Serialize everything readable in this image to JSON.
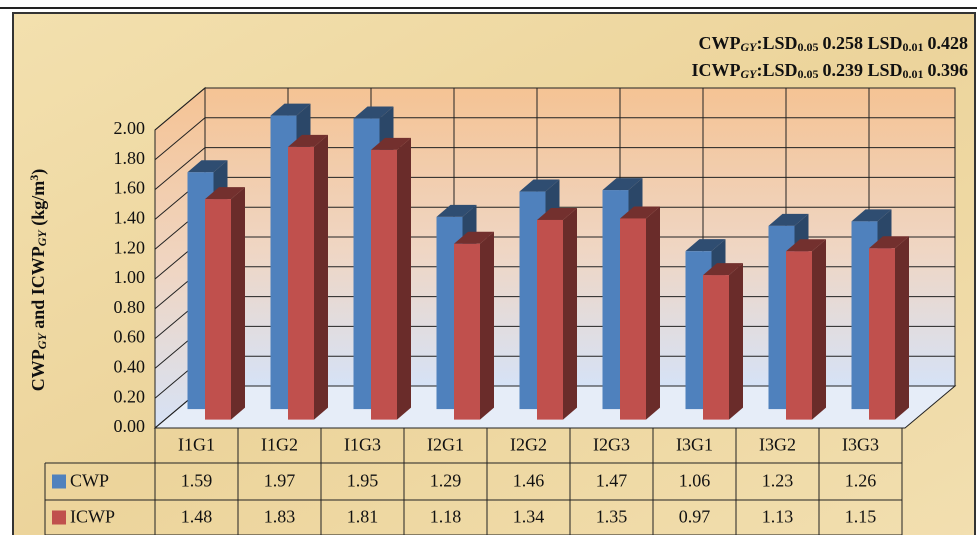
{
  "chart_data": {
    "type": "bar3d",
    "categories": [
      "I1G1",
      "I1G2",
      "I1G3",
      "I2G1",
      "I2G2",
      "I2G3",
      "I3G1",
      "I3G2",
      "I3G3"
    ],
    "series": [
      {
        "name": "CWP",
        "color": "#4f81bd",
        "values": [
          1.59,
          1.97,
          1.95,
          1.29,
          1.46,
          1.47,
          1.06,
          1.23,
          1.26
        ]
      },
      {
        "name": "ICWP",
        "color": "#c0504d",
        "values": [
          1.48,
          1.83,
          1.81,
          1.18,
          1.34,
          1.35,
          0.97,
          1.13,
          1.15
        ]
      }
    ],
    "ylim": [
      0,
      2
    ],
    "yticks": [
      {
        "value": 0,
        "label": "0.00"
      },
      {
        "value": 0.2,
        "label": "0.20"
      },
      {
        "value": 0.4,
        "label": "0.40"
      },
      {
        "value": 0.6,
        "label": "0.60"
      },
      {
        "value": 0.8,
        "label": "0.80"
      },
      {
        "value": 1,
        "label": "1.00"
      },
      {
        "value": 1.2,
        "label": "1.20"
      },
      {
        "value": 1.4,
        "label": "1.40"
      },
      {
        "value": 1.6,
        "label": "1.60"
      },
      {
        "value": 1.8,
        "label": "1.80"
      },
      {
        "value": 2,
        "label": "2.00"
      }
    ],
    "ylabel": {
      "a": "CWP",
      "a_sub": "GY",
      "b": " and ICWP",
      "b_sub": "GY",
      "unit": " (kg/m",
      "unit_sup": "3",
      "close": ")"
    },
    "annotations": [
      {
        "variable": "CWP",
        "variable_sub": "GY",
        "label_05": ":LSD",
        "level_05": 0.05,
        "value_05": 0.258,
        "label_01": " LSD",
        "level_01": 0.01,
        "value_01": 0.428
      },
      {
        "variable": "ICWP",
        "variable_sub": "GY",
        "label_05": ":LSD",
        "level_05": 0.05,
        "value_05": 0.239,
        "label_01": " LSD",
        "level_01": 0.01,
        "value_01": 0.396
      }
    ],
    "grid": true,
    "data_table": true
  }
}
